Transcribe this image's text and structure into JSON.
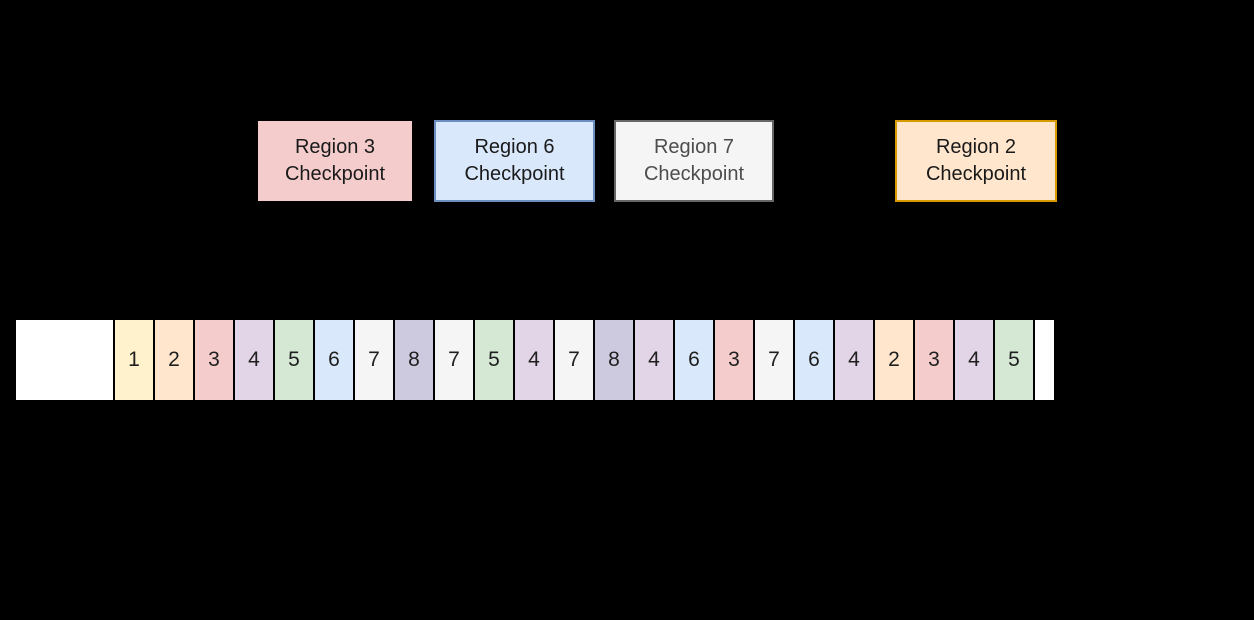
{
  "background_color": "#000000",
  "checkpoints": [
    {
      "id": "region-3",
      "line1": "Region 3",
      "line2": "Checkpoint",
      "fill": "#f4cccc",
      "stroke": "#000000",
      "text_color": "#1a1a1a"
    },
    {
      "id": "region-6",
      "line1": "Region 6",
      "line2": "Checkpoint",
      "fill": "#dae8fc",
      "stroke": "#6c8ebf",
      "text_color": "#1a1a1a"
    },
    {
      "id": "region-7",
      "line1": "Region 7",
      "line2": "Checkpoint",
      "fill": "#f5f5f5",
      "stroke": "#666666",
      "text_color": "#4d4d4d"
    },
    {
      "id": "region-2",
      "line1": "Region 2",
      "line2": "Checkpoint",
      "fill": "#ffe6cc",
      "stroke": "#d79b00",
      "text_color": "#1a1a1a"
    }
  ],
  "strip": {
    "lead_cell_color": "#ffffff",
    "tail_cell_color": "#ffffff",
    "number_color": "#1f1f1f",
    "cells": [
      1,
      2,
      3,
      4,
      5,
      6,
      7,
      8,
      7,
      5,
      4,
      7,
      8,
      4,
      6,
      3,
      7,
      6,
      4,
      2,
      3,
      4,
      5
    ],
    "region_colors": {
      "1": "#fff2cc",
      "2": "#ffe6cc",
      "3": "#f4cccc",
      "4": "#e1d5e7",
      "5": "#d5e8d4",
      "6": "#dae8fc",
      "7": "#f5f5f5",
      "8": "#cdc9de"
    }
  }
}
